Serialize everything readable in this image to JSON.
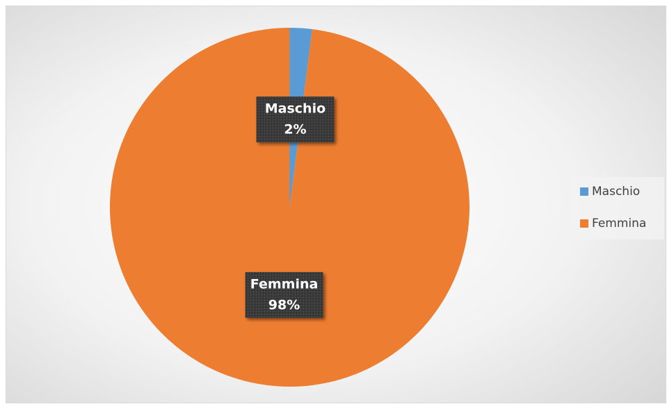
{
  "chart_data": {
    "type": "pie",
    "categories": [
      "Maschio",
      "Femmina"
    ],
    "values": [
      2,
      98
    ],
    "value_labels": [
      "2%",
      "98%"
    ],
    "colors": [
      "#5b9bd5",
      "#ed7d31"
    ],
    "legend": "right"
  }
}
